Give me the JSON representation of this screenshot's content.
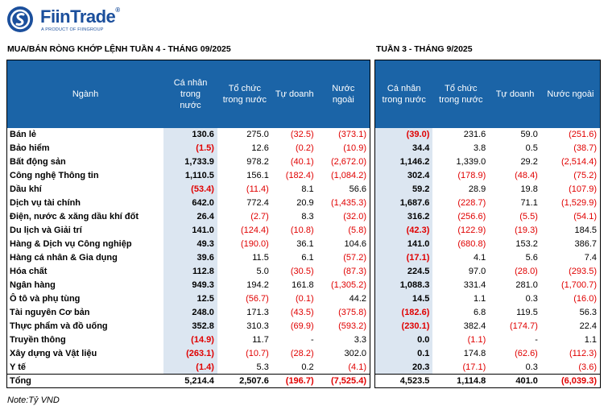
{
  "brand": {
    "name": "FiinTrade",
    "reg": "®",
    "tagline": "A PRODUCT OF FIINGROUP",
    "color": "#1b4f9c"
  },
  "left_title": "MUA/BÁN RÒNG KHỚP LỆNH TUẦN 4 - THÁNG 09/2025",
  "right_title": "TUẦN 3 - THÁNG 9/2025",
  "headers": {
    "sector": "Ngành",
    "individual": "Cá nhân trong nước",
    "institution": "Tổ chức trong nước",
    "proprietary": "Tự doanh",
    "foreign": "Nước ngoài"
  },
  "rows": [
    {
      "sector": "Bán lẻ",
      "w4": [
        "130.6",
        "275.0",
        "(32.5)",
        "(373.1)"
      ],
      "w3": [
        "(39.0)",
        "231.6",
        "59.0",
        "(251.6)"
      ]
    },
    {
      "sector": "Bảo hiểm",
      "w4": [
        "(1.5)",
        "12.6",
        "(0.2)",
        "(10.9)"
      ],
      "w3": [
        "34.4",
        "3.8",
        "0.5",
        "(38.7)"
      ]
    },
    {
      "sector": "Bất động sản",
      "w4": [
        "1,733.9",
        "978.2",
        "(40.1)",
        "(2,672.0)"
      ],
      "w3": [
        "1,146.2",
        "1,339.0",
        "29.2",
        "(2,514.4)"
      ]
    },
    {
      "sector": "Công nghệ Thông tin",
      "w4": [
        "1,110.5",
        "156.1",
        "(182.4)",
        "(1,084.2)"
      ],
      "w3": [
        "302.4",
        "(178.9)",
        "(48.4)",
        "(75.2)"
      ]
    },
    {
      "sector": "Dầu khí",
      "w4": [
        "(53.4)",
        "(11.4)",
        "8.1",
        "56.6"
      ],
      "w3": [
        "59.2",
        "28.9",
        "19.8",
        "(107.9)"
      ]
    },
    {
      "sector": "Dịch vụ tài chính",
      "w4": [
        "642.0",
        "772.4",
        "20.9",
        "(1,435.3)"
      ],
      "w3": [
        "1,687.6",
        "(228.7)",
        "71.1",
        "(1,529.9)"
      ]
    },
    {
      "sector": "Điện, nước & xăng dầu khí đốt",
      "w4": [
        "26.4",
        "(2.7)",
        "8.3",
        "(32.0)"
      ],
      "w3": [
        "316.2",
        "(256.6)",
        "(5.5)",
        "(54.1)"
      ]
    },
    {
      "sector": "Du lịch và Giải trí",
      "w4": [
        "141.0",
        "(124.4)",
        "(10.8)",
        "(5.8)"
      ],
      "w3": [
        "(42.3)",
        "(122.9)",
        "(19.3)",
        "184.5"
      ]
    },
    {
      "sector": "Hàng & Dịch vụ Công nghiệp",
      "w4": [
        "49.3",
        "(190.0)",
        "36.1",
        "104.6"
      ],
      "w3": [
        "141.0",
        "(680.8)",
        "153.2",
        "386.7"
      ]
    },
    {
      "sector": "Hàng cá nhân & Gia dụng",
      "w4": [
        "39.6",
        "11.5",
        "6.1",
        "(57.2)"
      ],
      "w3": [
        "(17.1)",
        "4.1",
        "5.6",
        "7.4"
      ]
    },
    {
      "sector": "Hóa chất",
      "w4": [
        "112.8",
        "5.0",
        "(30.5)",
        "(87.3)"
      ],
      "w3": [
        "224.5",
        "97.0",
        "(28.0)",
        "(293.5)"
      ]
    },
    {
      "sector": "Ngân hàng",
      "w4": [
        "949.3",
        "194.2",
        "161.8",
        "(1,305.2)"
      ],
      "w3": [
        "1,088.3",
        "331.4",
        "281.0",
        "(1,700.7)"
      ]
    },
    {
      "sector": "Ô tô và phụ tùng",
      "w4": [
        "12.5",
        "(56.7)",
        "(0.1)",
        "44.2"
      ],
      "w3": [
        "14.5",
        "1.1",
        "0.3",
        "(16.0)"
      ]
    },
    {
      "sector": "Tài nguyên Cơ bản",
      "w4": [
        "248.0",
        "171.3",
        "(43.5)",
        "(375.8)"
      ],
      "w3": [
        "(182.6)",
        "6.8",
        "119.5",
        "56.3"
      ]
    },
    {
      "sector": "Thực phẩm và đồ uống",
      "w4": [
        "352.8",
        "310.3",
        "(69.9)",
        "(593.2)"
      ],
      "w3": [
        "(230.1)",
        "382.4",
        "(174.7)",
        "22.4"
      ]
    },
    {
      "sector": "Truyền thông",
      "w4": [
        "(14.9)",
        "11.7",
        "-",
        "3.3"
      ],
      "w3": [
        "0.0",
        "(1.1)",
        "-",
        "1.1"
      ]
    },
    {
      "sector": "Xây dựng và Vật liệu",
      "w4": [
        "(263.1)",
        "(10.7)",
        "(28.2)",
        "302.0"
      ],
      "w3": [
        "0.1",
        "174.8",
        "(62.6)",
        "(112.3)"
      ]
    },
    {
      "sector": "Y tế",
      "w4": [
        "(1.4)",
        "5.3",
        "0.2",
        "(4.1)"
      ],
      "w3": [
        "20.3",
        "(17.1)",
        "0.3",
        "(3.6)"
      ]
    }
  ],
  "total": {
    "label": "Tổng",
    "w4": [
      "5,214.4",
      "2,507.6",
      "(196.7)",
      "(7,525.4)"
    ],
    "w3": [
      "4,523.5",
      "1,114.8",
      "401.0",
      "(6,039.3)"
    ]
  },
  "note": "Note:Tỷ VND",
  "colors": {
    "header_bg": "#1b64a7",
    "highlight_bg": "#dce6f1",
    "negative": "#e00000"
  }
}
